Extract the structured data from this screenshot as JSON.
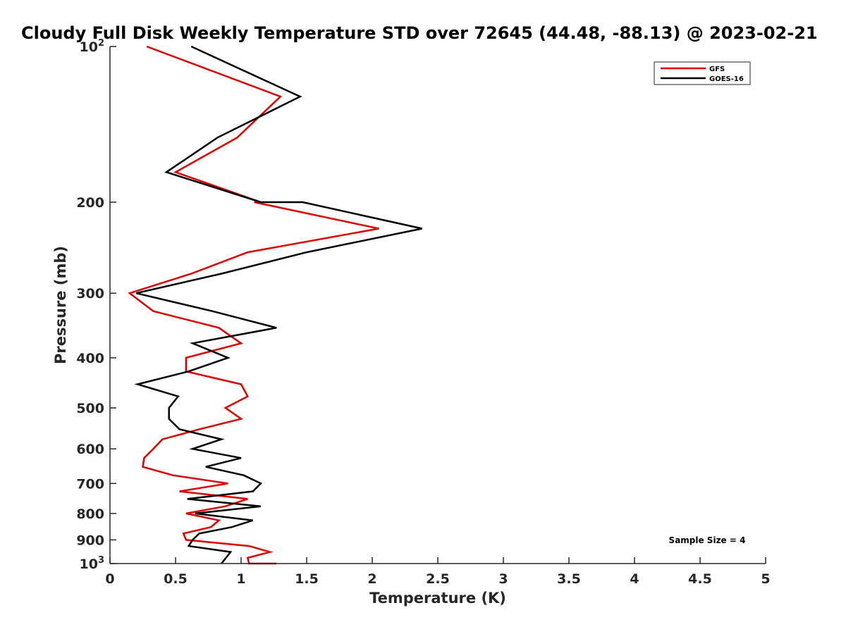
{
  "chart_data": {
    "type": "line",
    "title": "Cloudy Full Disk Weekly Temperature STD over 72645 (44.48, -88.13) @ 2023-02-21",
    "xlabel": "Temperature (K)",
    "ylabel": "Pressure (mb)",
    "xlim": [
      0,
      5
    ],
    "ylim": [
      100,
      1000
    ],
    "y_scale": "log",
    "y_reversed": true,
    "grid": false,
    "legend_position": "top-right",
    "x_ticks": [
      0,
      0.5,
      1,
      1.5,
      2,
      2.5,
      3,
      3.5,
      4,
      4.5,
      5
    ],
    "x_tick_labels": [
      "0",
      "0.5",
      "1",
      "1.5",
      "2",
      "2.5",
      "3",
      "3.5",
      "4",
      "4.5",
      "5"
    ],
    "y_ticks": [
      {
        "value": 100,
        "base": "10",
        "exp": "2"
      },
      {
        "value": 200,
        "label": "200"
      },
      {
        "value": 300,
        "label": "300"
      },
      {
        "value": 400,
        "label": "400"
      },
      {
        "value": 500,
        "label": "500"
      },
      {
        "value": 600,
        "label": "600"
      },
      {
        "value": 700,
        "label": "700"
      },
      {
        "value": 800,
        "label": "800"
      },
      {
        "value": 900,
        "label": "900"
      },
      {
        "value": 1000,
        "base": "10",
        "exp": "3"
      }
    ],
    "series": [
      {
        "name": "GFS",
        "color": "#dd0000",
        "points": [
          [
            0.28,
            100
          ],
          [
            1.3,
            125
          ],
          [
            0.97,
            150
          ],
          [
            0.5,
            175
          ],
          [
            1.15,
            200
          ],
          [
            1.1,
            200
          ],
          [
            2.05,
            225
          ],
          [
            1.05,
            250
          ],
          [
            0.62,
            275
          ],
          [
            0.15,
            300
          ],
          [
            0.33,
            325
          ],
          [
            0.83,
            350
          ],
          [
            1.0,
            375
          ],
          [
            0.58,
            400
          ],
          [
            0.58,
            425
          ],
          [
            1.0,
            450
          ],
          [
            1.05,
            475
          ],
          [
            0.88,
            500
          ],
          [
            1.0,
            525
          ],
          [
            0.68,
            550
          ],
          [
            0.4,
            575
          ],
          [
            0.33,
            600
          ],
          [
            0.26,
            625
          ],
          [
            0.25,
            650
          ],
          [
            0.48,
            675
          ],
          [
            0.9,
            700
          ],
          [
            0.53,
            725
          ],
          [
            1.05,
            750
          ],
          [
            0.88,
            775
          ],
          [
            0.58,
            800
          ],
          [
            0.83,
            825
          ],
          [
            0.77,
            850
          ],
          [
            0.56,
            875
          ],
          [
            0.58,
            900
          ],
          [
            1.06,
            925
          ],
          [
            1.22,
            950
          ],
          [
            1.05,
            975
          ],
          [
            1.06,
            1000
          ],
          [
            1.27,
            1000
          ]
        ]
      },
      {
        "name": "GOES-16",
        "color": "#000000",
        "points": [
          [
            0.62,
            100
          ],
          [
            1.45,
            125
          ],
          [
            0.82,
            150
          ],
          [
            0.43,
            175
          ],
          [
            1.15,
            200
          ],
          [
            1.47,
            200
          ],
          [
            2.38,
            225
          ],
          [
            1.5,
            250
          ],
          [
            0.85,
            275
          ],
          [
            0.2,
            300
          ],
          [
            0.78,
            325
          ],
          [
            1.27,
            350
          ],
          [
            0.63,
            375
          ],
          [
            0.9,
            400
          ],
          [
            0.6,
            425
          ],
          [
            0.21,
            450
          ],
          [
            0.52,
            475
          ],
          [
            0.45,
            500
          ],
          [
            0.45,
            525
          ],
          [
            0.53,
            550
          ],
          [
            0.85,
            575
          ],
          [
            0.63,
            600
          ],
          [
            1.0,
            625
          ],
          [
            0.73,
            650
          ],
          [
            1.02,
            675
          ],
          [
            1.15,
            700
          ],
          [
            1.09,
            725
          ],
          [
            0.59,
            750
          ],
          [
            1.15,
            775
          ],
          [
            0.65,
            800
          ],
          [
            1.09,
            825
          ],
          [
            0.93,
            850
          ],
          [
            0.68,
            875
          ],
          [
            0.63,
            900
          ],
          [
            0.6,
            925
          ],
          [
            0.92,
            950
          ],
          [
            0.85,
            1000
          ]
        ]
      }
    ],
    "annotations": [
      {
        "text": "Sample Size = 4",
        "position": "bottom-right"
      }
    ]
  }
}
